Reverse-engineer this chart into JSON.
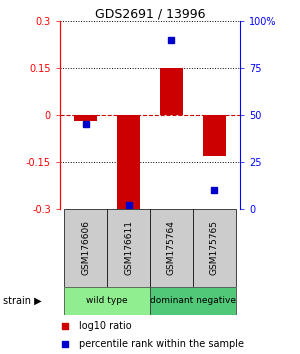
{
  "title": "GDS2691 / 13996",
  "samples": [
    "GSM176606",
    "GSM176611",
    "GSM175764",
    "GSM175765"
  ],
  "log10_ratio": [
    -0.02,
    -0.3,
    0.15,
    -0.13
  ],
  "percentile_rank": [
    45,
    2,
    90,
    10
  ],
  "groups": [
    {
      "label": "wild type",
      "samples": [
        0,
        1
      ],
      "color": "#90EE90"
    },
    {
      "label": "dominant negative",
      "samples": [
        2,
        3
      ],
      "color": "#50C878"
    }
  ],
  "ylim": [
    -0.3,
    0.3
  ],
  "yticks_left": [
    -0.3,
    -0.15,
    0.0,
    0.15,
    0.3
  ],
  "yticks_left_labels": [
    "-0.3",
    "-0.15",
    "0",
    "0.15",
    "0.3"
  ],
  "yticks_right_labels": [
    "0",
    "25",
    "50",
    "75",
    "100%"
  ],
  "bar_color": "#CC0000",
  "square_color": "#0000CC",
  "zero_line_color": "#CC0000",
  "dotted_color": "#000000",
  "label_box_color": "#cccccc",
  "strain_arrow": "▶",
  "legend_bar_label": "log10 ratio",
  "legend_sq_label": "percentile rank within the sample"
}
